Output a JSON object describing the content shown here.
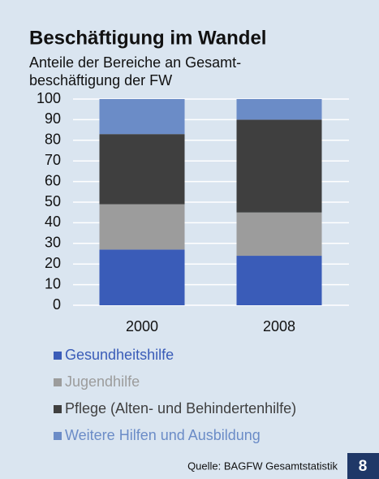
{
  "chart_data": {
    "type": "stacked_bar",
    "title": "Beschäftigung im Wandel",
    "subtitle": [
      "Anteile der Bereiche an Gesamt-",
      "beschäftigung der FW"
    ],
    "categories": [
      "2000",
      "2008"
    ],
    "series": [
      {
        "name": "Gesundheitshilfe",
        "color": "#3a5cb8",
        "values": [
          27,
          24
        ]
      },
      {
        "name": "Jugendhilfe",
        "color": "#9c9c9c",
        "values": [
          22,
          21
        ]
      },
      {
        "name": "Pflege (Alten- und Behindertenhilfe)",
        "color": "#3f3f3f",
        "values": [
          34,
          45
        ]
      },
      {
        "name": "Weitere Hilfen und Ausbildung",
        "color": "#6b8cc7",
        "values": [
          17,
          10
        ]
      }
    ],
    "ylim": [
      0,
      100
    ],
    "yticks": [
      0,
      10,
      20,
      30,
      40,
      50,
      60,
      70,
      80,
      90,
      100
    ],
    "grid": true,
    "source": "Quelle: BAGFW Gesamtstatistik",
    "page_number": "8"
  }
}
